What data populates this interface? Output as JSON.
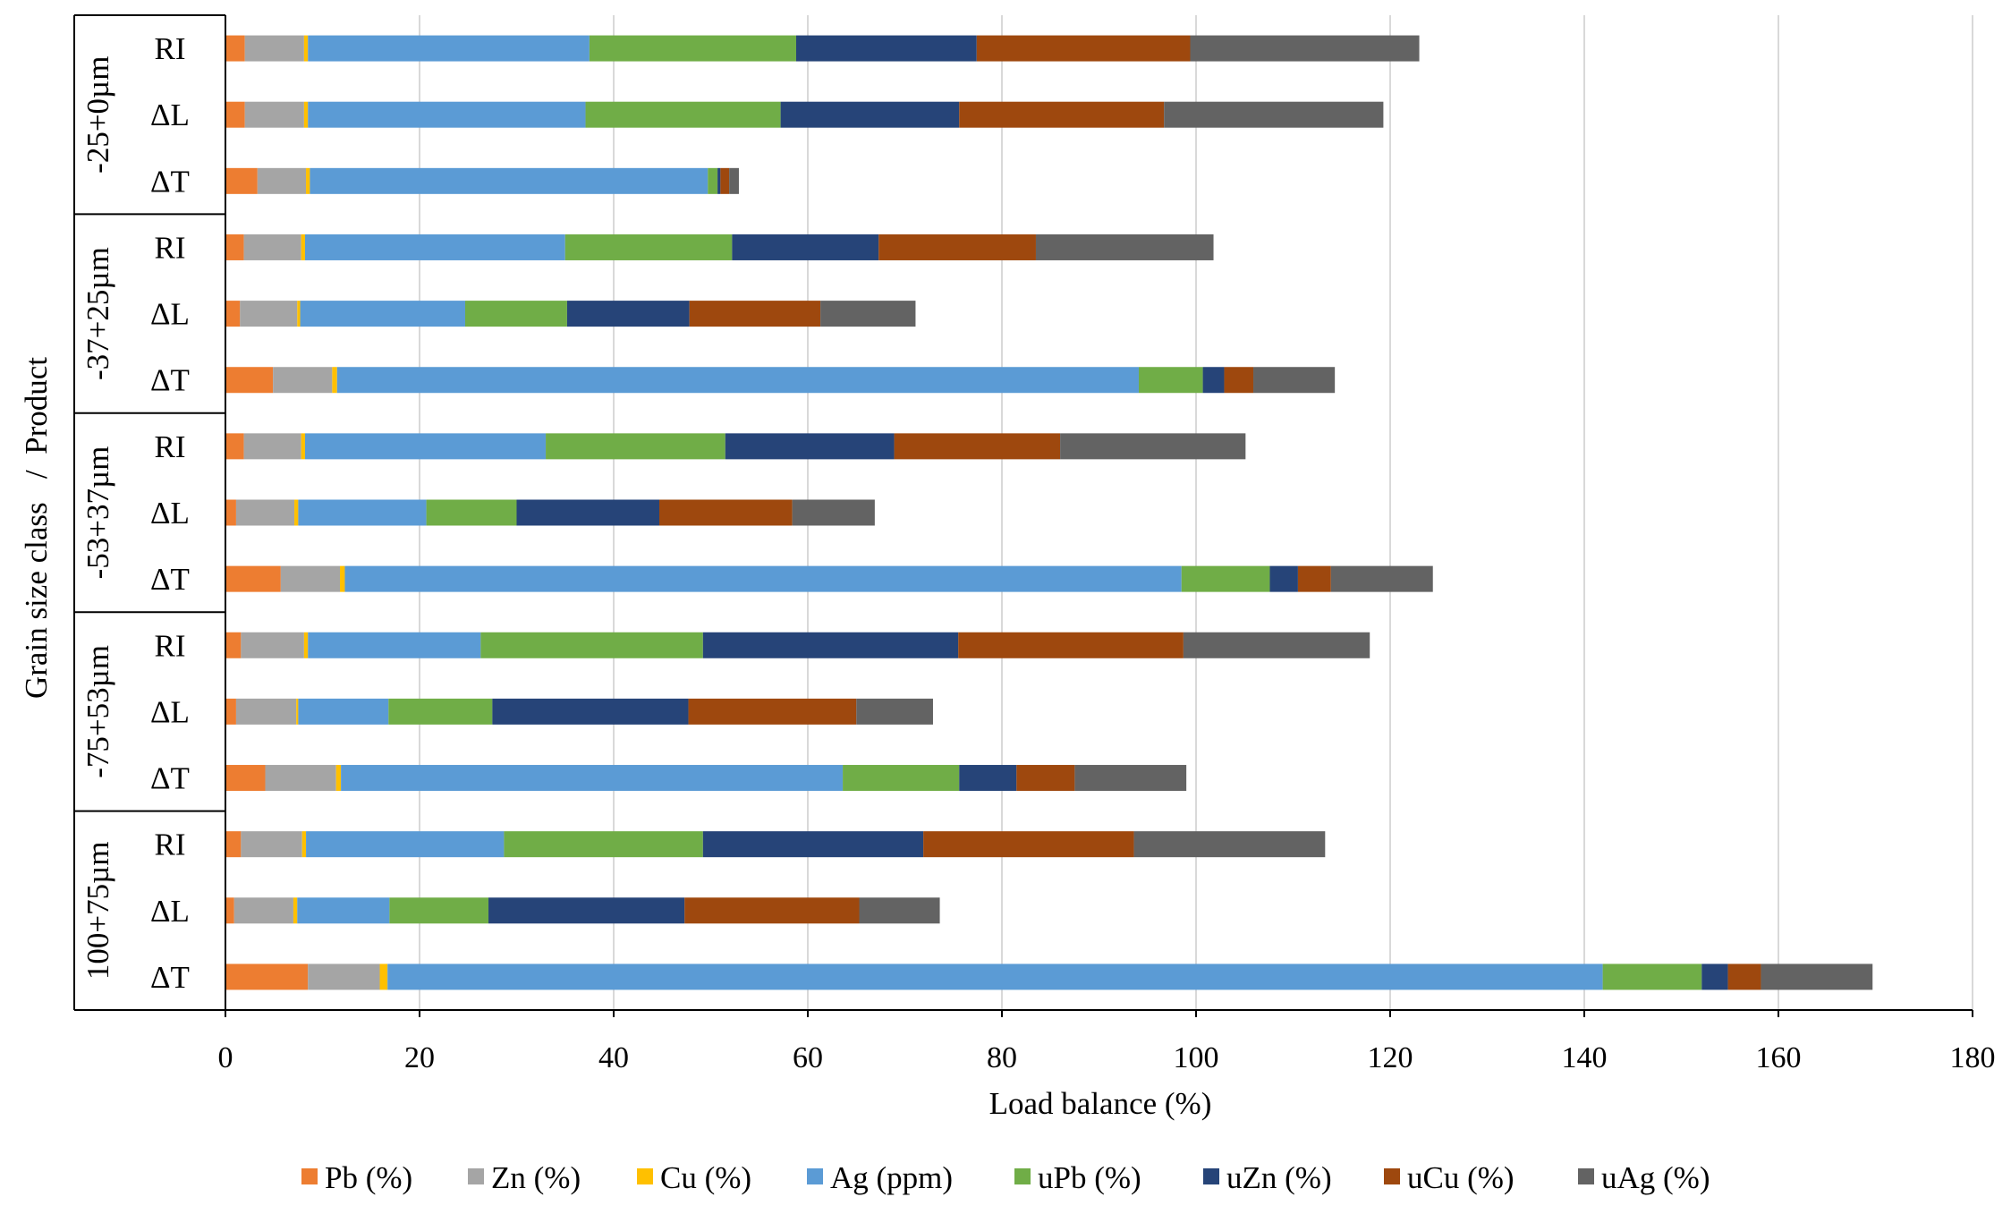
{
  "chart_data": {
    "type": "bar",
    "orientation": "horizontal",
    "stacked": true,
    "xlabel": "Load balance (%)",
    "ylabel": "Grain size class   /  Product",
    "xlim": [
      0,
      180
    ],
    "xticks": [
      0,
      20,
      40,
      60,
      80,
      100,
      120,
      140,
      160,
      180
    ],
    "grid": "vertical",
    "legend": "bottom",
    "groups": [
      {
        "label": "-25+0µm",
        "rows": [
          "RI",
          "ΔL",
          "ΔT"
        ]
      },
      {
        "label": "-37+25µm",
        "rows": [
          "RI",
          "ΔL",
          "ΔT"
        ]
      },
      {
        "label": "-53+37µm",
        "rows": [
          "RI",
          "ΔL",
          "ΔT"
        ]
      },
      {
        "label": "-75+53µm",
        "rows": [
          "RI",
          "ΔL",
          "ΔT"
        ]
      },
      {
        "label": "100+75µm",
        "rows": [
          "RI",
          "ΔL",
          "ΔT"
        ]
      }
    ],
    "series": [
      {
        "name": "Pb (%)",
        "color": "#ED7D31",
        "values": [
          2.0,
          2.0,
          3.3,
          1.9,
          1.5,
          4.9,
          1.9,
          1.1,
          5.7,
          1.6,
          1.1,
          4.1,
          1.6,
          0.9,
          8.5
        ]
      },
      {
        "name": "Zn (%)",
        "color": "#A5A5A5",
        "values": [
          6.1,
          6.1,
          5.0,
          5.9,
          5.9,
          6.1,
          5.9,
          6.0,
          6.1,
          6.5,
          6.2,
          7.3,
          6.3,
          6.1,
          7.4
        ]
      },
      {
        "name": "Cu (%)",
        "color": "#FFC000",
        "values": [
          0.4,
          0.4,
          0.4,
          0.4,
          0.3,
          0.5,
          0.4,
          0.4,
          0.5,
          0.4,
          0.2,
          0.5,
          0.4,
          0.4,
          0.8
        ]
      },
      {
        "name": "Ag (ppm)",
        "color": "#5B9BD5",
        "values": [
          29.0,
          28.6,
          41.0,
          26.8,
          17.0,
          82.6,
          24.8,
          13.2,
          86.2,
          17.8,
          9.3,
          51.7,
          20.4,
          9.5,
          125.2
        ]
      },
      {
        "name": "uPb (%)",
        "color": "#70AD47",
        "values": [
          21.3,
          20.1,
          1.0,
          17.2,
          10.5,
          6.6,
          18.5,
          9.3,
          9.1,
          22.9,
          10.7,
          12.0,
          20.5,
          10.2,
          10.2
        ]
      },
      {
        "name": "uZn (%)",
        "color": "#264478",
        "values": [
          18.6,
          18.4,
          0.3,
          15.1,
          12.6,
          2.2,
          17.4,
          14.7,
          2.9,
          26.3,
          20.2,
          5.9,
          22.7,
          20.2,
          2.7
        ]
      },
      {
        "name": "uCu (%)",
        "color": "#9E480E",
        "values": [
          22.0,
          21.1,
          0.9,
          16.2,
          13.5,
          3.0,
          17.1,
          13.7,
          3.4,
          23.2,
          17.3,
          6.0,
          21.7,
          18.0,
          3.4
        ]
      },
      {
        "name": "uAg (%)",
        "color": "#636363",
        "values": [
          23.6,
          22.6,
          1.0,
          18.3,
          9.8,
          8.4,
          19.1,
          8.5,
          10.5,
          19.2,
          7.9,
          11.5,
          19.7,
          8.3,
          11.5
        ]
      }
    ]
  }
}
